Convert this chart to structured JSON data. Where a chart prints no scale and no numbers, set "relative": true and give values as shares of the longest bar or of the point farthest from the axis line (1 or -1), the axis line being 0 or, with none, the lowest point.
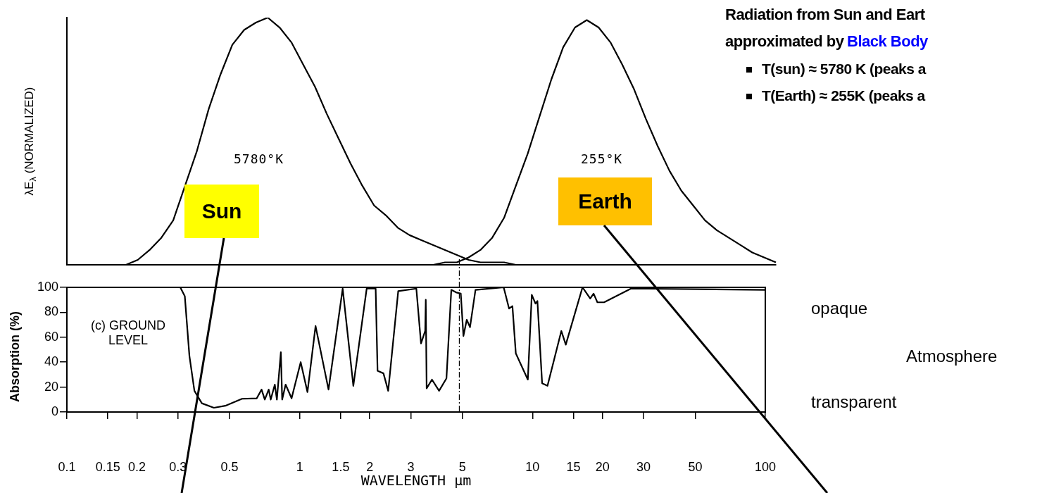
{
  "chart_data": [
    {
      "type": "line",
      "relative": true,
      "ylabel": "λE$_{λ}$ (NORMALIZED)",
      "grid": false,
      "legend": false,
      "marker": "none",
      "categories": [
        null,
        null,
        null,
        null,
        null,
        null,
        null,
        null,
        null,
        null,
        null,
        null,
        null,
        null,
        null,
        null,
        null,
        null,
        null,
        null,
        null,
        null,
        null,
        null,
        null,
        null,
        null,
        null,
        null,
        null,
        null,
        null,
        null,
        null,
        null,
        null,
        null,
        null,
        null,
        null,
        null,
        null,
        null,
        null,
        null,
        null,
        null,
        null,
        null,
        null,
        null,
        null,
        null,
        null,
        null,
        null,
        null,
        null,
        null,
        null,
        null
      ],
      "series": [
        {
          "name": "Sun",
          "color": "#000000",
          "values": [
            0,
            0,
            0,
            0,
            0,
            0,
            0.02,
            0.06,
            0.11,
            0.18,
            0.32,
            0.46,
            0.63,
            0.77,
            0.89,
            0.95,
            0.98,
            1,
            0.96,
            0.9,
            0.81,
            0.72,
            0.61,
            0.51,
            0.41,
            0.32,
            0.24,
            0.2,
            0.15,
            0.12,
            0.1,
            0.08,
            0.06,
            0.04,
            0.02,
            0.01,
            0.01,
            0.01,
            0,
            0,
            0,
            0,
            0,
            0,
            0,
            0,
            0,
            0,
            0,
            0,
            0,
            0,
            0,
            0,
            0,
            0,
            0,
            0,
            0,
            0,
            0
          ]
        },
        {
          "name": "Earth",
          "color": "#000000",
          "values": [
            0,
            0,
            0,
            0,
            0,
            0,
            0,
            0,
            0,
            0,
            0,
            0,
            0,
            0,
            0,
            0,
            0,
            0,
            0,
            0,
            0,
            0,
            0,
            0,
            0,
            0,
            0,
            0,
            0,
            0,
            0,
            0,
            0.01,
            0.01,
            0.03,
            0.06,
            0.11,
            0.19,
            0.32,
            0.45,
            0.6,
            0.75,
            0.88,
            0.96,
            0.99,
            0.96,
            0.9,
            0.81,
            0.71,
            0.59,
            0.48,
            0.38,
            0.3,
            0.24,
            0.18,
            0.14,
            0.11,
            0.08,
            0.05,
            0.03,
            0.01
          ]
        }
      ],
      "annotations": [
        "5780°K",
        "255°K",
        "Radiation from Sun and Eart",
        "approximated by",
        "Black Body",
        "T(sun) ≈ 5780 K (peaks a",
        "T(Earth) ≈ 255K (peaks a"
      ]
    },
    {
      "type": "line",
      "ylabel": "Absorption (%)",
      "xlabel": "WAVELENGTH µm",
      "log": "x",
      "xlim": [
        0.1,
        100
      ],
      "xticks": [
        0.1,
        0.15,
        0.2,
        0.3,
        0.5,
        1,
        1.5,
        2,
        3,
        5,
        10,
        15,
        20,
        30,
        50,
        100
      ],
      "ylim": [
        0,
        100
      ],
      "yticks": [
        0,
        20,
        40,
        60,
        80,
        100
      ],
      "grid": false,
      "legend": false,
      "marker": "none",
      "series": [
        {
          "color": "#000000",
          "x": [
            0.104,
            0.307,
            0.321,
            0.336,
            0.353,
            0.38,
            0.428,
            0.479,
            0.565,
            0.654,
            0.686,
            0.708,
            0.736,
            0.751,
            0.782,
            0.798,
            0.83,
            0.841,
            0.87,
            0.923,
            1.01,
            1.08,
            1.17,
            1.33,
            1.53,
            1.7,
            1.94,
            2.12,
            2.16,
            2.29,
            2.4,
            2.65,
            3.17,
            3.32,
            3.46,
            3.48,
            3.51,
            3.7,
            3.97,
            4.27,
            4.48,
            4.69,
            4.92,
            5.05,
            5.22,
            5.39,
            5.69,
            7.52,
            7.93,
            8.2,
            8.48,
            9.55,
            9.93,
            10.3,
            10.5,
            11.0,
            11.6,
            13.3,
            13.9,
            16.4,
            17.7,
            18.3,
            19.0,
            20.3,
            26.5,
            100
          ],
          "values": [
            100,
            100,
            93,
            45,
            17,
            7,
            3.4,
            5,
            10.6,
            11,
            18,
            10,
            18,
            10,
            22,
            10,
            48,
            10,
            22,
            11,
            40,
            16,
            69,
            18,
            99,
            21,
            99,
            99,
            33,
            31,
            17,
            97,
            99,
            55,
            65,
            90,
            19,
            26,
            17,
            27,
            98,
            96,
            95,
            61,
            74,
            68,
            98,
            100,
            83,
            85,
            47,
            26,
            94,
            87,
            89,
            23,
            21,
            65,
            54,
            100,
            91,
            95,
            88,
            88,
            99,
            98
          ]
        }
      ],
      "ref_lines": [
        {
          "axis": "x",
          "value": 4.85,
          "line_style": "dashed",
          "color": "#000000"
        }
      ],
      "annotations": [
        "(c) GROUND LEVEL",
        "opaque",
        "Atmosphere",
        "transparent"
      ]
    }
  ]
}
